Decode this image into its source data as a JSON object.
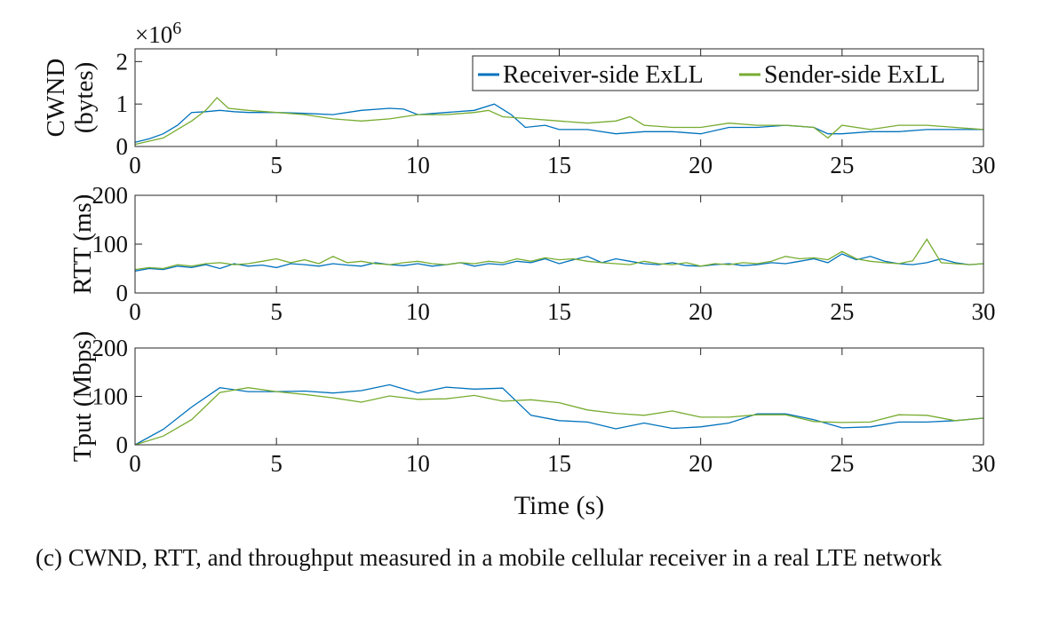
{
  "chart_data": [
    {
      "type": "line",
      "name": "cwnd",
      "ylabel_lines": [
        "CWND",
        "(bytes)"
      ],
      "exponent_label": "×10",
      "exponent_power": "6",
      "xlim": [
        0,
        30
      ],
      "ylim": [
        0,
        2.3
      ],
      "xticks": [
        "0",
        "5",
        "10",
        "15",
        "20",
        "25",
        "30"
      ],
      "yticks": [
        "0",
        "1",
        "2"
      ],
      "legend": {
        "placement": "top-right",
        "entries": [
          "Receiver-side ExLL",
          "Sender-side ExLL"
        ]
      },
      "series": [
        {
          "name": "Receiver-side ExLL",
          "color": "#0072BD",
          "x": [
            0,
            0.5,
            1,
            1.5,
            2,
            2.5,
            3,
            3.5,
            4,
            5,
            6,
            7,
            8,
            9,
            9.5,
            10,
            11,
            12,
            12.7,
            13.3,
            13.8,
            14.5,
            15,
            16,
            17,
            18,
            19,
            20,
            21,
            22,
            23,
            24,
            24.5,
            25,
            26,
            27,
            28,
            29,
            30
          ],
          "y": [
            0.1,
            0.18,
            0.3,
            0.5,
            0.8,
            0.82,
            0.85,
            0.82,
            0.8,
            0.8,
            0.78,
            0.75,
            0.85,
            0.9,
            0.88,
            0.75,
            0.8,
            0.85,
            1.0,
            0.75,
            0.45,
            0.5,
            0.4,
            0.4,
            0.3,
            0.35,
            0.35,
            0.3,
            0.45,
            0.45,
            0.5,
            0.45,
            0.3,
            0.3,
            0.35,
            0.35,
            0.4,
            0.4,
            0.4
          ]
        },
        {
          "name": "Sender-side ExLL",
          "color": "#77AC30",
          "x": [
            0,
            1,
            2,
            2.5,
            2.9,
            3.3,
            4,
            5,
            6,
            7,
            8,
            9,
            10,
            11,
            12,
            12.5,
            13,
            14,
            15,
            16,
            17,
            17.5,
            18,
            19,
            20,
            21,
            22,
            23,
            24,
            24.5,
            25,
            26,
            27,
            28,
            29,
            30
          ],
          "y": [
            0.05,
            0.2,
            0.6,
            0.85,
            1.15,
            0.9,
            0.85,
            0.8,
            0.75,
            0.65,
            0.6,
            0.65,
            0.75,
            0.75,
            0.8,
            0.85,
            0.7,
            0.65,
            0.6,
            0.55,
            0.6,
            0.7,
            0.5,
            0.45,
            0.45,
            0.55,
            0.5,
            0.5,
            0.45,
            0.2,
            0.5,
            0.4,
            0.5,
            0.5,
            0.45,
            0.4
          ]
        }
      ]
    },
    {
      "type": "line",
      "name": "rtt",
      "ylabel_lines": [
        "RTT (ms)"
      ],
      "xlim": [
        0,
        30
      ],
      "ylim": [
        0,
        200
      ],
      "xticks": [
        "0",
        "5",
        "10",
        "15",
        "20",
        "25",
        "30"
      ],
      "yticks": [
        "0",
        "100",
        "200"
      ],
      "x_step": 0.5,
      "series": [
        {
          "name": "Receiver-side ExLL",
          "color": "#0072BD",
          "y": [
            45,
            50,
            48,
            55,
            52,
            58,
            50,
            60,
            55,
            57,
            52,
            60,
            58,
            55,
            60,
            57,
            55,
            62,
            58,
            56,
            60,
            55,
            58,
            62,
            55,
            60,
            58,
            65,
            62,
            70,
            60,
            68,
            75,
            62,
            70,
            65,
            60,
            58,
            62,
            56,
            55,
            58,
            60,
            56,
            58,
            62,
            60,
            65,
            70,
            62,
            80,
            68,
            75,
            65,
            60,
            58,
            62,
            70,
            62,
            58,
            60
          ]
        },
        {
          "name": "Sender-side ExLL",
          "color": "#77AC30",
          "y": [
            48,
            52,
            50,
            58,
            55,
            60,
            62,
            58,
            60,
            65,
            70,
            62,
            68,
            60,
            75,
            62,
            65,
            60,
            58,
            62,
            65,
            60,
            58,
            62,
            60,
            65,
            62,
            70,
            65,
            72,
            68,
            70,
            65,
            62,
            60,
            58,
            65,
            60,
            58,
            62,
            55,
            60,
            58,
            62,
            60,
            65,
            75,
            70,
            72,
            68,
            85,
            70,
            65,
            62,
            60,
            66,
            110,
            62,
            60,
            58,
            60
          ]
        }
      ]
    },
    {
      "type": "line",
      "name": "tput",
      "ylabel_lines": [
        "Tput (Mbps)"
      ],
      "xlabel": "Time (s)",
      "xlim": [
        0,
        30
      ],
      "ylim": [
        0,
        200
      ],
      "xticks": [
        "0",
        "5",
        "10",
        "15",
        "20",
        "25",
        "30"
      ],
      "yticks": [
        "0",
        "100",
        "200"
      ],
      "x_step": 1,
      "series": [
        {
          "name": "Receiver-side ExLL",
          "color": "#0072BD",
          "y": [
            0,
            32,
            78,
            118,
            110,
            110,
            111,
            107,
            112,
            124,
            107,
            119,
            115,
            117,
            61,
            50,
            47,
            33,
            45,
            34,
            37,
            45,
            64,
            64,
            52,
            35,
            37,
            47,
            47,
            50,
            55
          ]
        },
        {
          "name": "Sender-side ExLL",
          "color": "#77AC30",
          "y": [
            0,
            18,
            52,
            108,
            118,
            110,
            104,
            97,
            88,
            101,
            94,
            95,
            102,
            90,
            93,
            87,
            72,
            65,
            61,
            70,
            57,
            57,
            62,
            62,
            48,
            46,
            47,
            62,
            61,
            50,
            55
          ]
        }
      ]
    }
  ],
  "caption": "(c)  CWND, RTT, and throughput measured in a mobile cellular receiver in a real LTE network"
}
